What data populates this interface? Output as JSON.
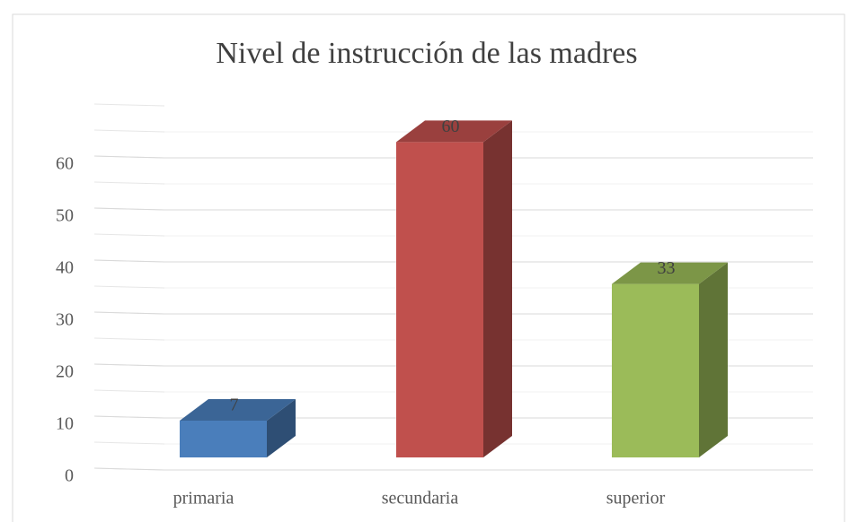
{
  "chart_data": {
    "type": "bar3d",
    "title": "Nivel de instrucción de las madres",
    "categories": [
      "primaria",
      "secundaria",
      "superior"
    ],
    "values": [
      7,
      60,
      33
    ],
    "colors": [
      "#4a7ebb",
      "#c0504d",
      "#9bbb59"
    ],
    "ylim": [
      0,
      70
    ],
    "yticks": [
      0,
      10,
      20,
      30,
      40,
      50,
      60
    ],
    "grid": true
  }
}
